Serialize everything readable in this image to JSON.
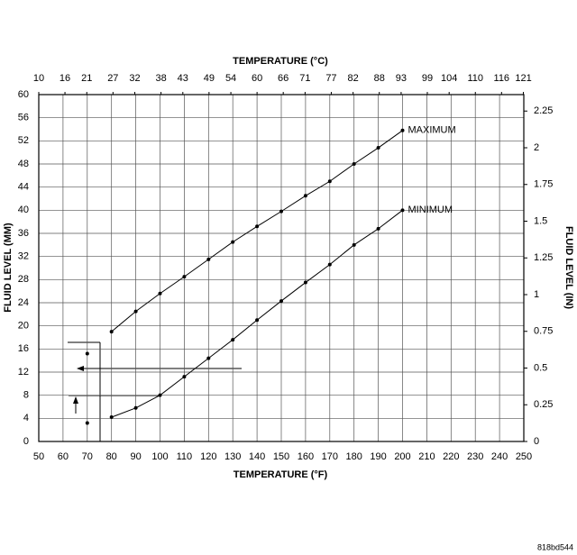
{
  "chart_data": {
    "type": "line",
    "title": "TEMPERATURE (°C)",
    "xlabel": "TEMPERATURE (°F)",
    "ylabel": "FLUID LEVEL (MM)",
    "y2label": "FLUID LEVEL (IN)",
    "x": [
      70,
      80,
      90,
      100,
      110,
      120,
      130,
      140,
      150,
      160,
      170,
      180,
      190,
      200
    ],
    "series": [
      {
        "name": "MAXIMUM",
        "color": "#000000",
        "values": [
          15.2,
          19,
          22.5,
          25.6,
          28.5,
          31.5,
          34.5,
          37.2,
          39.8,
          42.5,
          45,
          48,
          50.8,
          53.8
        ]
      },
      {
        "name": "MINIMUM",
        "color": "#000000",
        "values": [
          3.2,
          4.2,
          5.8,
          8,
          11.2,
          14.4,
          17.6,
          21,
          24.3,
          27.5,
          30.6,
          34,
          36.8,
          40
        ]
      }
    ],
    "xlim": [
      50,
      250
    ],
    "xticks": [
      50,
      60,
      70,
      80,
      90,
      100,
      110,
      120,
      130,
      140,
      150,
      160,
      170,
      180,
      190,
      200,
      210,
      220,
      230,
      240,
      250
    ],
    "x2lim": [
      10,
      121.1
    ],
    "x2ticks": [
      10,
      16,
      21,
      27,
      32,
      38,
      43,
      49,
      54,
      60,
      66,
      71,
      77,
      82,
      88,
      93,
      99,
      104,
      110,
      116,
      121
    ],
    "ylim": [
      0,
      60
    ],
    "yticks": [
      0,
      4,
      8,
      12,
      16,
      20,
      24,
      28,
      32,
      36,
      40,
      44,
      48,
      52,
      56,
      60
    ],
    "y2lim": [
      0,
      2.362
    ],
    "y2ticks": [
      0,
      0.25,
      0.5,
      0.75,
      1,
      1.25,
      1.5,
      1.75,
      2,
      2.25
    ],
    "grid": true,
    "figure_id": "818bd544"
  }
}
